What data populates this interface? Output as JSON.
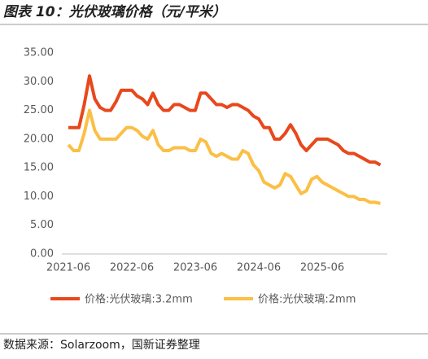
{
  "chart_data": {
    "type": "line",
    "title": "图表 10：光伏玻璃价格（元/平米）",
    "source": "数据来源：Solarzoom，国新证券整理",
    "categories": [
      "2021-06",
      null,
      null,
      null,
      null,
      null,
      null,
      null,
      null,
      null,
      null,
      null,
      "2022-06",
      null,
      null,
      null,
      null,
      null,
      null,
      null,
      null,
      null,
      null,
      null,
      "2023-06",
      null,
      null,
      null,
      null,
      null,
      null,
      null,
      null,
      null,
      null,
      null,
      "2024-06",
      null,
      null,
      null,
      null,
      null,
      null,
      null,
      null,
      null,
      null,
      null,
      "2025-06",
      null,
      null,
      null,
      null,
      null,
      null,
      null,
      null,
      null,
      null,
      null
    ],
    "series": [
      {
        "name": "价格:光伏玻璃:3.2mm",
        "color": "#e8481c",
        "values": [
          22,
          22,
          22,
          26,
          31,
          27,
          25.5,
          25,
          25,
          26.5,
          28.5,
          28.5,
          28.5,
          27.5,
          27,
          26,
          28,
          26,
          25,
          25,
          26,
          26,
          25.5,
          25,
          25,
          28,
          28,
          27,
          26,
          26,
          25.5,
          26,
          26,
          25.5,
          25,
          24,
          23.5,
          22,
          22,
          20,
          20,
          21,
          22.5,
          21,
          19,
          18,
          19,
          20,
          20,
          20,
          19.5,
          19,
          18,
          17.5,
          17.5,
          17,
          16.5,
          16,
          16,
          15.5
        ]
      },
      {
        "name": "价格:光伏玻璃:2mm",
        "color": "#fbbf45",
        "values": [
          19,
          18,
          18,
          21,
          25,
          21.5,
          20,
          20,
          20,
          20,
          21,
          22,
          22,
          21.5,
          20.5,
          20,
          21.5,
          19,
          18,
          18,
          18.5,
          18.5,
          18.5,
          18,
          18,
          20,
          19.5,
          17.5,
          17,
          17.5,
          17,
          16.5,
          16.5,
          18,
          17.5,
          15.5,
          14.5,
          12.5,
          12,
          11.5,
          12,
          14,
          13.5,
          12,
          10.5,
          11,
          13,
          13.5,
          12.5,
          12,
          11.5,
          11,
          10.5,
          10,
          10,
          9.5,
          9.5,
          9,
          9,
          8.8
        ]
      }
    ],
    "ylim": [
      0,
      35
    ],
    "yticks": [
      {
        "value": 0,
        "label": "0.00"
      },
      {
        "value": 5,
        "label": "5.00"
      },
      {
        "value": 10,
        "label": "10.00"
      },
      {
        "value": 15,
        "label": "15.00"
      },
      {
        "value": 20,
        "label": "20.00"
      },
      {
        "value": 25,
        "label": "25.00"
      },
      {
        "value": 30,
        "label": "30.00"
      },
      {
        "value": 35,
        "label": "35.00"
      }
    ],
    "grid": false
  }
}
